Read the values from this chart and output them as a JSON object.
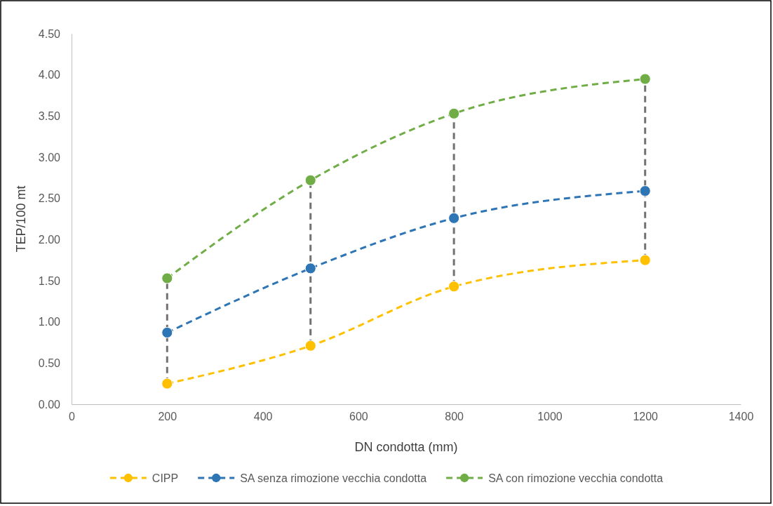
{
  "chart_data": {
    "type": "line",
    "xlabel": "DN condotta (mm)",
    "ylabel": "TEP/100 mt",
    "x": [
      200,
      500,
      800,
      1200
    ],
    "series": [
      {
        "name": "CIPP",
        "color": "#ffc000",
        "values": [
          0.25,
          0.71,
          1.43,
          1.75
        ]
      },
      {
        "name": "SA senza rimozione vecchia condotta",
        "color": "#2e75b6",
        "values": [
          0.87,
          1.65,
          2.26,
          2.59
        ]
      },
      {
        "name": "SA con rimozione vecchia condotta",
        "color": "#70ad47",
        "values": [
          1.53,
          2.72,
          3.53,
          3.95
        ]
      }
    ],
    "xlim": [
      0,
      1400
    ],
    "xticks": [
      0,
      200,
      400,
      600,
      800,
      1000,
      1200,
      1400
    ],
    "ylim": [
      0,
      4.5
    ],
    "yticks": [
      {
        "value": 0,
        "label": "0.00"
      },
      {
        "value": 0.5,
        "label": "0.50"
      },
      {
        "value": 1,
        "label": "1.00"
      },
      {
        "value": 1.5,
        "label": "1.50"
      },
      {
        "value": 2,
        "label": "2.00"
      },
      {
        "value": 2.5,
        "label": "2.50"
      },
      {
        "value": 3,
        "label": "3.00"
      },
      {
        "value": 3.5,
        "label": "3.50"
      },
      {
        "value": 4,
        "label": "4.00"
      },
      {
        "value": 4.5,
        "label": "4.50"
      }
    ],
    "grid": false,
    "legend": "bottom",
    "marker": "circle",
    "line_style": "dashed"
  }
}
